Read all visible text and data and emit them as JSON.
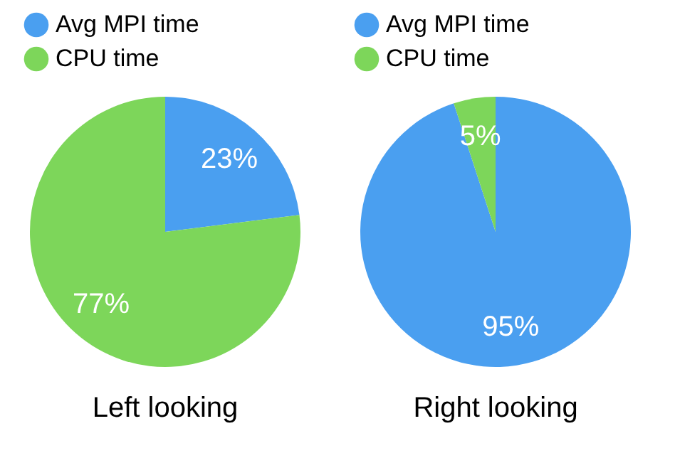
{
  "chart_data": [
    {
      "type": "pie",
      "title": "Left looking",
      "categories": [
        "Avg MPI time",
        "CPU time"
      ],
      "values": [
        23,
        77
      ],
      "colors": [
        "#4a9ff0",
        "#7dd65a"
      ],
      "value_labels": [
        "23%",
        "77%"
      ],
      "legend": "top left"
    },
    {
      "type": "pie",
      "title": "Right looking",
      "categories": [
        "Avg MPI time",
        "CPU time"
      ],
      "values": [
        95,
        5
      ],
      "colors": [
        "#4a9ff0",
        "#7dd65a"
      ],
      "value_labels": [
        "95%",
        "5%"
      ],
      "legend": "top left"
    }
  ]
}
